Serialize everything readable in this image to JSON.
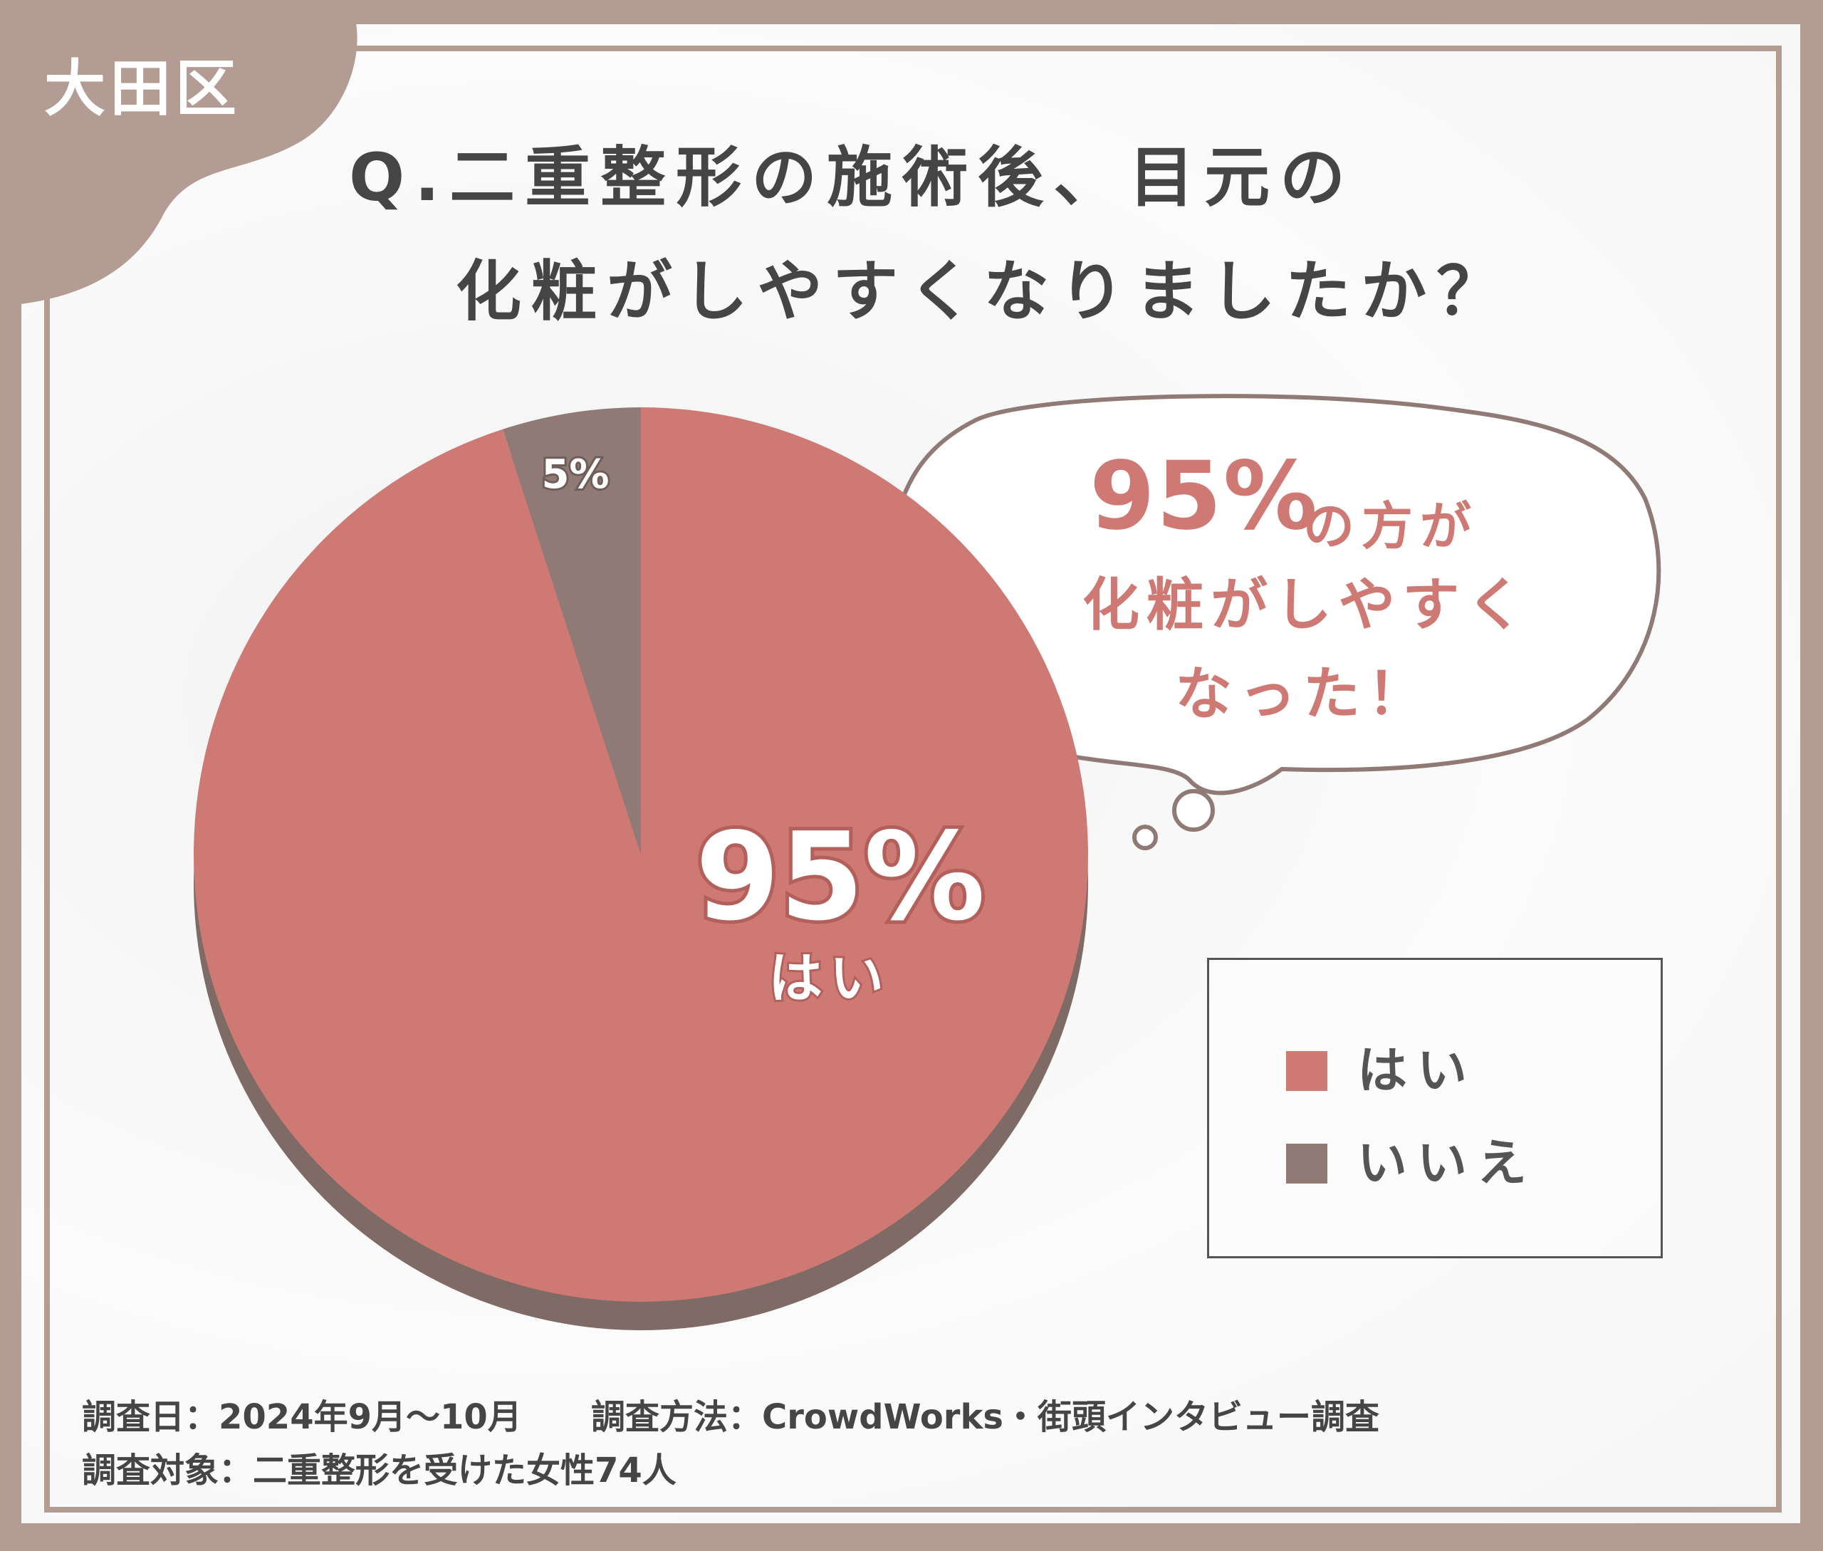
{
  "ward": "大田区",
  "title": {
    "line1": "Q.二重整形の施術後、目元の",
    "line2": "化粧がしやすくなりましたか？"
  },
  "chart_data": {
    "type": "pie",
    "slices": [
      {
        "label": "はい",
        "value": 95,
        "value_label": "95%",
        "color": "#cf7975"
      },
      {
        "label": "いいえ",
        "value": 5,
        "value_label": "5%",
        "color": "#8f7a76"
      }
    ],
    "legend": [
      "はい",
      "いいえ"
    ],
    "legend_placement": "right"
  },
  "bubble": {
    "percent": "95%",
    "line1": "の方が",
    "line2": "化粧がしやすく",
    "line3": "なった！"
  },
  "footer": {
    "date": "調査日：2024年9月～10月",
    "method": "調査方法：CrowdWorks・街頭インタビュー調査",
    "target": "調査対象：二重整形を受けた女性74人"
  },
  "colors": {
    "frame": "#b29c94",
    "yes": "#cf7975",
    "no": "#8f7a76",
    "shadow": "#7e6b66"
  }
}
